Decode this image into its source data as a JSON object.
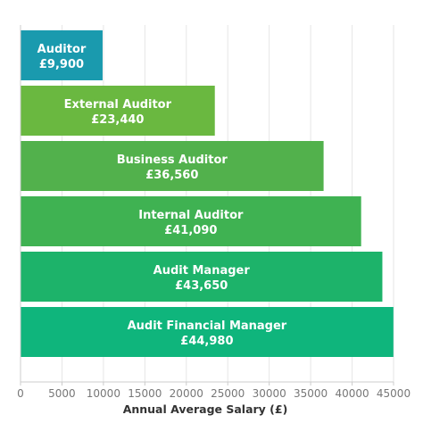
{
  "chart_data": {
    "type": "bar",
    "orientation": "horizontal",
    "categories": [
      "Auditor",
      "External Auditor",
      "Business Auditor",
      "Internal Auditor",
      "Audit Manager",
      "Audit Financial Manager"
    ],
    "values": [
      9900,
      23440,
      36560,
      41090,
      43650,
      44980
    ],
    "value_labels": [
      "£9,900",
      "£23,440",
      "£36,560",
      "£41,090",
      "£43,650",
      "£44,980"
    ],
    "bar_colors": [
      "#1a9aae",
      "#6ab840",
      "#52b14c",
      "#3fb252",
      "#1db36a",
      "#0fb57c"
    ],
    "title": "",
    "xlabel": "Annual Average Salary (£)",
    "ylabel": "",
    "xlim": [
      0,
      45000
    ],
    "xticks": [
      0,
      5000,
      10000,
      15000,
      20000,
      25000,
      30000,
      35000,
      40000,
      45000
    ],
    "grid": true,
    "legend": "none"
  }
}
